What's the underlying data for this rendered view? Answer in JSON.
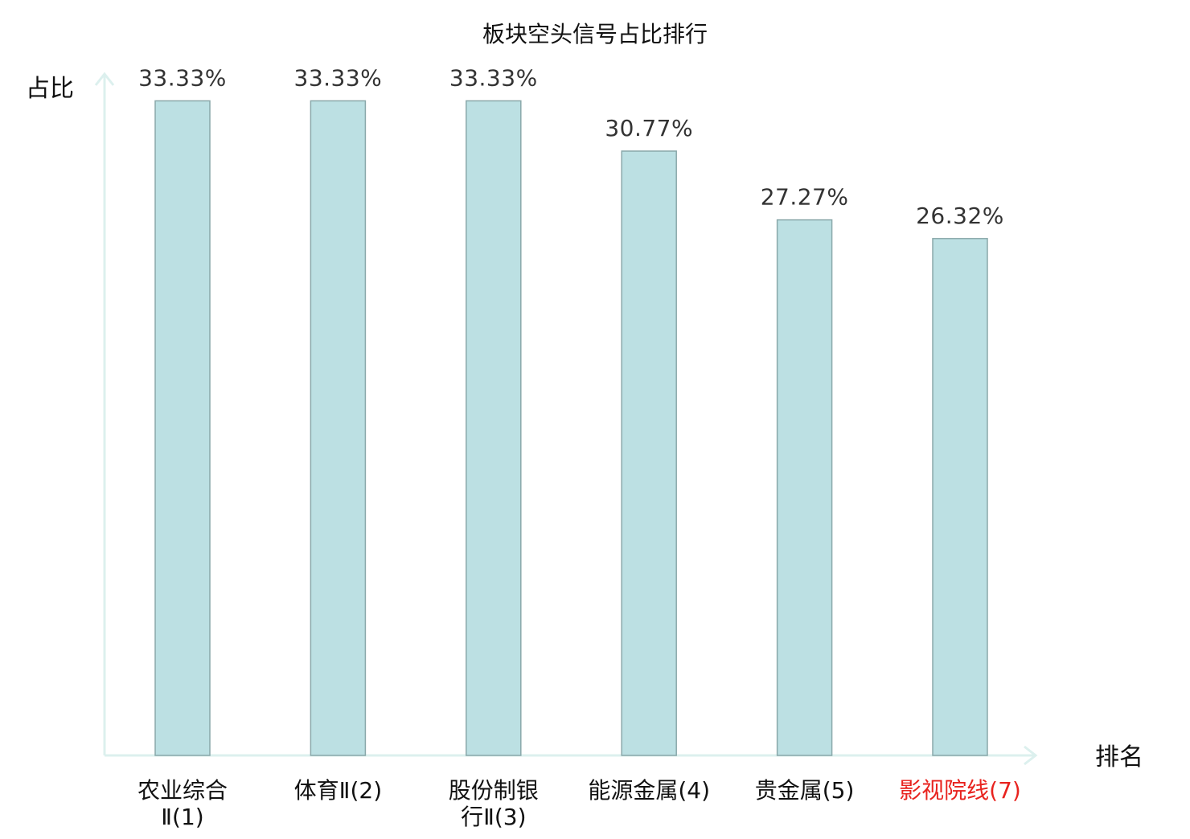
{
  "chart_data": {
    "type": "bar",
    "title": "板块空头信号占比排行",
    "ylabel": "占比",
    "xlabel": "排名",
    "ylim": [
      0,
      36.5
    ],
    "grid": false,
    "value_labels": [
      "33.33%",
      "33.33%",
      "33.33%",
      "30.77%",
      "27.27%",
      "26.32%"
    ],
    "values": [
      33.33,
      33.33,
      33.33,
      30.77,
      27.27,
      26.32
    ],
    "categories": [
      {
        "lines": [
          "农业综合",
          "Ⅱ(1)"
        ],
        "highlight": false
      },
      {
        "lines": [
          "体育Ⅱ(2)"
        ],
        "highlight": false
      },
      {
        "lines": [
          "股份制银",
          "行Ⅱ(3)"
        ],
        "highlight": false
      },
      {
        "lines": [
          "能源金属(4)"
        ],
        "highlight": false
      },
      {
        "lines": [
          "贵金属(5)"
        ],
        "highlight": false
      },
      {
        "lines": [
          "影视院线(7)"
        ],
        "highlight": true
      }
    ],
    "colors": {
      "bar_fill": "#bce0e3",
      "bar_stroke": "#8aa8aa",
      "axis": "#dcf0ee",
      "highlight_text": "#e8231f"
    }
  }
}
